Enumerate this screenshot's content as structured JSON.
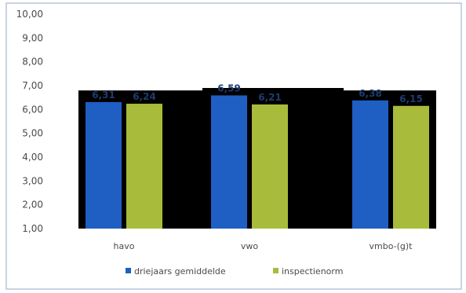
{
  "chart_data": {
    "type": "bar",
    "categories": [
      "havo",
      "vwo",
      "vmbo-(g)t"
    ],
    "series": [
      {
        "name": "driejaars gemiddelde",
        "values": [
          6.31,
          6.59,
          6.38
        ],
        "color": "#1f5fc4"
      },
      {
        "name": "inspectienorm",
        "values": [
          6.24,
          6.21,
          6.15
        ],
        "color": "#a8bb3a"
      }
    ],
    "data_labels": [
      [
        "6,31",
        "6,59",
        "6,38"
      ],
      [
        "6,24",
        "6,21",
        "6,15"
      ]
    ],
    "y_tick_labels": [
      "1,00",
      "2,00",
      "3,00",
      "4,00",
      "5,00",
      "6,00",
      "7,00",
      "8,00",
      "9,00",
      "10,00"
    ],
    "y_ticks": [
      1,
      2,
      3,
      4,
      5,
      6,
      7,
      8,
      9,
      10
    ],
    "ylim": [
      1,
      10
    ],
    "title": "",
    "xlabel": "",
    "ylabel": "",
    "legend_position": "bottom",
    "grid": false,
    "plot_background_color": "#000000",
    "frame_border_color": "#b8c4d8"
  }
}
